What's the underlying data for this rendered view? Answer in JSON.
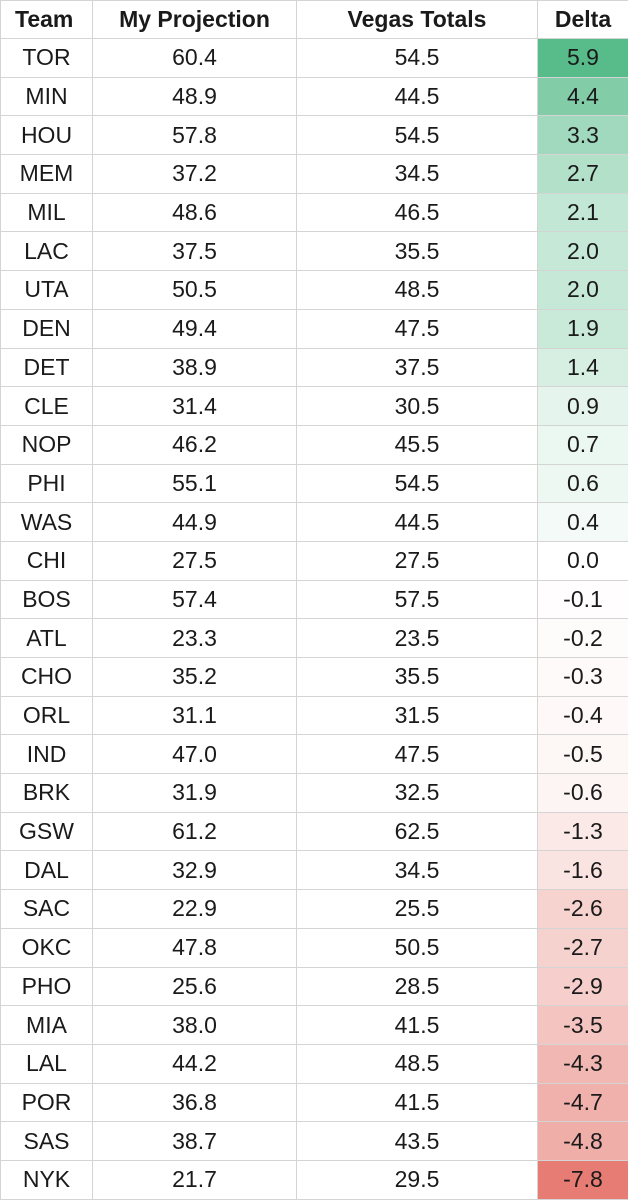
{
  "chart_data": {
    "type": "table",
    "columns": [
      "Team",
      "My Projection",
      "Vegas Totals",
      "Delta"
    ],
    "rows": [
      [
        "TOR",
        "60.4",
        "54.5",
        "5.9"
      ],
      [
        "MIN",
        "48.9",
        "44.5",
        "4.4"
      ],
      [
        "HOU",
        "57.8",
        "54.5",
        "3.3"
      ],
      [
        "MEM",
        "37.2",
        "34.5",
        "2.7"
      ],
      [
        "MIL",
        "48.6",
        "46.5",
        "2.1"
      ],
      [
        "LAC",
        "37.5",
        "35.5",
        "2.0"
      ],
      [
        "UTA",
        "50.5",
        "48.5",
        "2.0"
      ],
      [
        "DEN",
        "49.4",
        "47.5",
        "1.9"
      ],
      [
        "DET",
        "38.9",
        "37.5",
        "1.4"
      ],
      [
        "CLE",
        "31.4",
        "30.5",
        "0.9"
      ],
      [
        "NOP",
        "46.2",
        "45.5",
        "0.7"
      ],
      [
        "PHI",
        "55.1",
        "54.5",
        "0.6"
      ],
      [
        "WAS",
        "44.9",
        "44.5",
        "0.4"
      ],
      [
        "CHI",
        "27.5",
        "27.5",
        "0.0"
      ],
      [
        "BOS",
        "57.4",
        "57.5",
        "-0.1"
      ],
      [
        "ATL",
        "23.3",
        "23.5",
        "-0.2"
      ],
      [
        "CHO",
        "35.2",
        "35.5",
        "-0.3"
      ],
      [
        "ORL",
        "31.1",
        "31.5",
        "-0.4"
      ],
      [
        "IND",
        "47.0",
        "47.5",
        "-0.5"
      ],
      [
        "BRK",
        "31.9",
        "32.5",
        "-0.6"
      ],
      [
        "GSW",
        "61.2",
        "62.5",
        "-1.3"
      ],
      [
        "DAL",
        "32.9",
        "34.5",
        "-1.6"
      ],
      [
        "SAC",
        "22.9",
        "25.5",
        "-2.6"
      ],
      [
        "OKC",
        "47.8",
        "50.5",
        "-2.7"
      ],
      [
        "PHO",
        "25.6",
        "28.5",
        "-2.9"
      ],
      [
        "MIA",
        "38.0",
        "41.5",
        "-3.5"
      ],
      [
        "LAL",
        "44.2",
        "48.5",
        "-4.3"
      ],
      [
        "POR",
        "36.8",
        "41.5",
        "-4.7"
      ],
      [
        "SAS",
        "38.7",
        "43.5",
        "-4.8"
      ],
      [
        "NYK",
        "21.7",
        "29.5",
        "-7.8"
      ]
    ],
    "color_scale": {
      "column": "Delta",
      "positive_color": "#57bb8a",
      "midpoint_color": "#ffffff",
      "negative_color": "#e67c73",
      "min": -7.8,
      "max": 5.9,
      "midpoint": 0
    },
    "grid": true
  }
}
